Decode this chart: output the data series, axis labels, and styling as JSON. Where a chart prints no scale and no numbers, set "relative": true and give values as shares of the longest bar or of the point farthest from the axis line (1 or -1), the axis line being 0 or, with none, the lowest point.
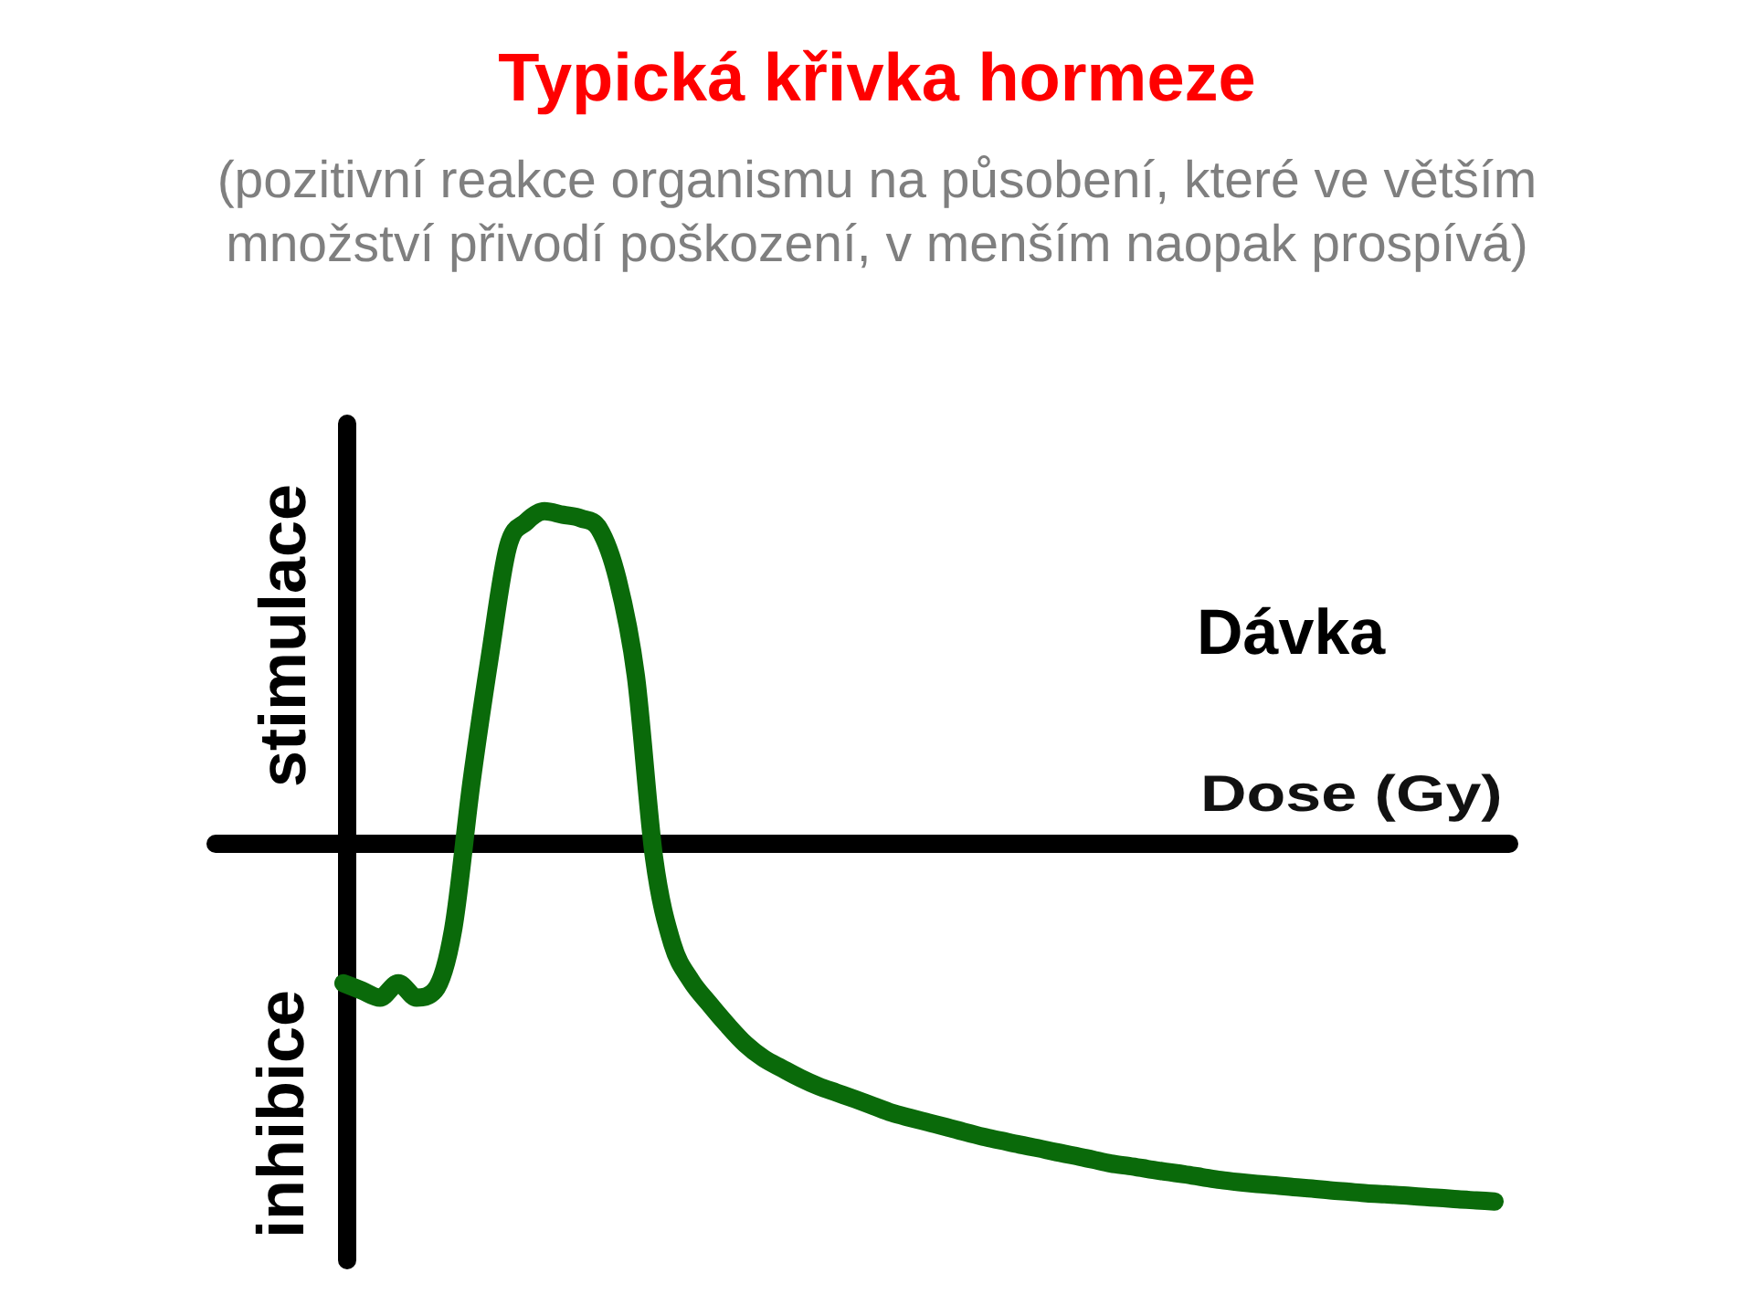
{
  "chart_data": {
    "type": "line",
    "title": "Typická křivka hormeze",
    "subtitle": "(pozitivní reakce organismu na působení, které ve větším množství přivodí poškození, v menším naopak prospívá)",
    "xlabel": "Dose (Gy)",
    "annotations": [
      "Dávka",
      "stimulace",
      "inhibice"
    ],
    "relative": true,
    "categories": [
      null,
      null,
      null,
      null,
      null,
      null,
      null,
      null,
      null,
      null,
      null,
      null,
      null,
      null,
      null,
      null,
      null,
      null,
      null,
      null,
      null,
      null,
      null,
      null,
      null,
      null,
      null,
      null,
      null,
      null,
      null,
      null,
      null,
      null,
      null,
      null,
      null,
      null,
      null,
      null,
      null,
      null,
      null,
      null,
      null,
      null,
      null,
      null,
      null,
      null,
      null,
      null,
      null,
      null,
      null,
      null,
      null,
      null,
      null,
      null,
      null,
      null,
      null,
      null
    ],
    "series": [
      {
        "color": "#0a6a0a",
        "values": [
          -0.39,
          -0.41,
          -0.43,
          -0.39,
          -0.43,
          -0.41,
          -0.24,
          0.17,
          0.52,
          0.83,
          0.9,
          0.93,
          0.92,
          0.91,
          0.88,
          0.74,
          0.47,
          -0.04,
          -0.28,
          -0.381,
          -0.446,
          -0.506,
          -0.56,
          -0.6,
          -0.628,
          -0.655,
          -0.678,
          -0.696,
          -0.714,
          -0.733,
          -0.752,
          -0.766,
          -0.779,
          -0.792,
          -0.806,
          -0.819,
          -0.83,
          -0.841,
          -0.851,
          -0.862,
          -0.872,
          -0.883,
          -0.894,
          -0.901,
          -0.909,
          -0.917,
          -0.924,
          -0.932,
          -0.94,
          -0.946,
          -0.951,
          -0.955,
          -0.96,
          -0.964,
          -0.969,
          -0.973,
          -0.977,
          -0.98,
          -0.983,
          -0.987,
          -0.99,
          -0.994,
          -0.997,
          -1
        ]
      }
    ]
  }
}
